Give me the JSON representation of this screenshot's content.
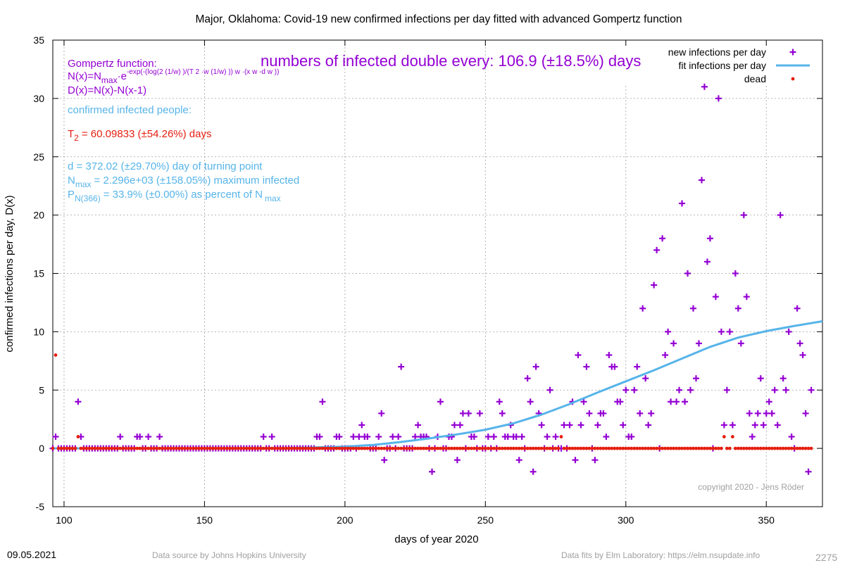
{
  "chart_data": {
    "type": "scatter",
    "title": "Major,  Oklahoma: Covid-19 new confirmed infections per day fitted with advanced Gompertz function",
    "xlabel": "days of year 2020",
    "ylabel": "confirmed infections per day, D(x)",
    "xlim": [
      96,
      370
    ],
    "ylim": [
      -5,
      35
    ],
    "xticks": [
      100,
      150,
      200,
      250,
      300,
      350
    ],
    "yticks": [
      -5,
      0,
      5,
      10,
      15,
      20,
      25,
      30,
      35
    ],
    "grid": true,
    "legend_position": "top-right",
    "colors": {
      "infections": "#9400d3",
      "fit": "#56b4e9",
      "dead": "#e51e10",
      "params": "#56b4e9",
      "t2": "#e51e10",
      "gompertz": "#9400d3"
    },
    "series": [
      {
        "name": "new infections per day",
        "marker": "plus",
        "points": [
          [
            97,
            1
          ],
          [
            105,
            4
          ],
          [
            106,
            1
          ],
          [
            120,
            1
          ],
          [
            126,
            1
          ],
          [
            127,
            1
          ],
          [
            130,
            1
          ],
          [
            134,
            1
          ],
          [
            171,
            1
          ],
          [
            174,
            1
          ],
          [
            190,
            1
          ],
          [
            191,
            1
          ],
          [
            192,
            4
          ],
          [
            197,
            1
          ],
          [
            198,
            1
          ],
          [
            203,
            1
          ],
          [
            205,
            1
          ],
          [
            206,
            2
          ],
          [
            207,
            1
          ],
          [
            208,
            1
          ],
          [
            212,
            1
          ],
          [
            213,
            3
          ],
          [
            214,
            -1
          ],
          [
            217,
            1
          ],
          [
            219,
            1
          ],
          [
            220,
            7
          ],
          [
            222,
            0
          ],
          [
            225,
            1
          ],
          [
            226,
            2
          ],
          [
            227,
            1
          ],
          [
            228,
            1
          ],
          [
            229,
            1
          ],
          [
            231,
            -2
          ],
          [
            233,
            1
          ],
          [
            234,
            4
          ],
          [
            237,
            1
          ],
          [
            238,
            1
          ],
          [
            239,
            2
          ],
          [
            240,
            -1
          ],
          [
            241,
            2
          ],
          [
            242,
            3
          ],
          [
            244,
            3
          ],
          [
            245,
            1
          ],
          [
            246,
            1
          ],
          [
            248,
            3
          ],
          [
            251,
            1
          ],
          [
            253,
            1
          ],
          [
            255,
            4
          ],
          [
            256,
            3
          ],
          [
            257,
            1
          ],
          [
            258,
            1
          ],
          [
            259,
            2
          ],
          [
            260,
            1
          ],
          [
            261,
            1
          ],
          [
            262,
            -1
          ],
          [
            263,
            1
          ],
          [
            265,
            6
          ],
          [
            266,
            4
          ],
          [
            267,
            -2
          ],
          [
            268,
            7
          ],
          [
            269,
            3
          ],
          [
            270,
            2
          ],
          [
            272,
            1
          ],
          [
            273,
            5
          ],
          [
            275,
            1
          ],
          [
            278,
            2
          ],
          [
            280,
            2
          ],
          [
            281,
            4
          ],
          [
            282,
            -1
          ],
          [
            283,
            8
          ],
          [
            284,
            2
          ],
          [
            285,
            4
          ],
          [
            286,
            7
          ],
          [
            287,
            3
          ],
          [
            289,
            -1
          ],
          [
            290,
            2
          ],
          [
            291,
            3
          ],
          [
            292,
            3
          ],
          [
            293,
            1
          ],
          [
            294,
            8
          ],
          [
            295,
            7
          ],
          [
            296,
            7
          ],
          [
            297,
            4
          ],
          [
            298,
            4
          ],
          [
            299,
            2
          ],
          [
            300,
            5
          ],
          [
            301,
            1
          ],
          [
            302,
            1
          ],
          [
            303,
            5
          ],
          [
            304,
            7
          ],
          [
            305,
            3
          ],
          [
            306,
            12
          ],
          [
            307,
            6
          ],
          [
            308,
            2
          ],
          [
            309,
            3
          ],
          [
            310,
            14
          ],
          [
            311,
            17
          ],
          [
            313,
            18
          ],
          [
            314,
            8
          ],
          [
            315,
            10
          ],
          [
            316,
            4
          ],
          [
            317,
            9
          ],
          [
            318,
            4
          ],
          [
            319,
            5
          ],
          [
            320,
            21
          ],
          [
            321,
            4
          ],
          [
            322,
            15
          ],
          [
            323,
            5
          ],
          [
            324,
            12
          ],
          [
            325,
            6
          ],
          [
            326,
            9
          ],
          [
            327,
            23
          ],
          [
            328,
            31
          ],
          [
            329,
            16
          ],
          [
            330,
            18
          ],
          [
            332,
            13
          ],
          [
            333,
            30
          ],
          [
            334,
            10
          ],
          [
            335,
            2
          ],
          [
            336,
            5
          ],
          [
            337,
            10
          ],
          [
            338,
            2
          ],
          [
            339,
            15
          ],
          [
            340,
            12
          ],
          [
            341,
            9
          ],
          [
            342,
            20
          ],
          [
            343,
            13
          ],
          [
            344,
            3
          ],
          [
            345,
            1
          ],
          [
            346,
            2
          ],
          [
            347,
            3
          ],
          [
            348,
            6
          ],
          [
            349,
            2
          ],
          [
            350,
            3
          ],
          [
            351,
            4
          ],
          [
            352,
            3
          ],
          [
            353,
            5
          ],
          [
            354,
            2
          ],
          [
            355,
            20
          ],
          [
            356,
            6
          ],
          [
            357,
            5
          ],
          [
            358,
            10
          ],
          [
            359,
            1
          ],
          [
            361,
            12
          ],
          [
            362,
            9
          ],
          [
            363,
            8
          ],
          [
            364,
            3
          ],
          [
            365,
            -2
          ],
          [
            366,
            5
          ]
        ],
        "zero_days": [
          96,
          366
        ]
      },
      {
        "name": "fit infections per day",
        "type": "line",
        "points": [
          [
            96,
            0.0
          ],
          [
            180,
            0.02
          ],
          [
            200,
            0.15
          ],
          [
            210,
            0.3
          ],
          [
            220,
            0.55
          ],
          [
            230,
            0.85
          ],
          [
            240,
            1.2
          ],
          [
            250,
            1.6
          ],
          [
            260,
            2.15
          ],
          [
            270,
            2.9
          ],
          [
            280,
            3.8
          ],
          [
            290,
            4.8
          ],
          [
            300,
            5.75
          ],
          [
            310,
            6.7
          ],
          [
            320,
            7.7
          ],
          [
            330,
            8.7
          ],
          [
            340,
            9.5
          ],
          [
            350,
            10.05
          ],
          [
            360,
            10.5
          ],
          [
            370,
            10.9
          ]
        ]
      },
      {
        "name": "dead",
        "marker": "dot",
        "points": [
          [
            97,
            8
          ],
          [
            105,
            1
          ],
          [
            277,
            1
          ],
          [
            335,
            1
          ],
          [
            338,
            1
          ]
        ],
        "zero_days": [
          96,
          366
        ]
      }
    ],
    "annotations": {
      "doubling": "numbers of infected double every: 106.9 (±18.5%) days",
      "gompertz_title": "Gompertz function:",
      "formula_n": "N(x)=N",
      "formula_n_sub": "max",
      "formula_n_rest": "·e",
      "formula_exp": "-exp(-(log(2 (1/w) )/(T 2 ·w (1/w) )) w ·(x w -d w ))",
      "formula_d": "D(x)=N(x)-N(x-1)",
      "confirmed_label": "confirmed infected people:",
      "t2_label": "T",
      "t2_sub": "2",
      "t2_value": "= 60.09833 (±54.26%) days",
      "d_value": "d = 372.02 (±29.70%) day of turning point",
      "nmax_label": "N",
      "nmax_sub": "max",
      "nmax_value": "= 2.296e+03 (±158.05%) maximum infected",
      "pn_label": "P",
      "pn_sub": "N(366)",
      "pn_value": "= 33.9% (±0.00%) as percent of N",
      "pn_sub2": "max",
      "copyright": "copyright 2020 - Jens Röder"
    }
  },
  "footer": {
    "date": "09.05.2021",
    "source": "Data source by Johns Hopkins University",
    "fits": "Data fits by Elm Laboratory: https://elm.nsupdate.info",
    "number": "2275"
  }
}
